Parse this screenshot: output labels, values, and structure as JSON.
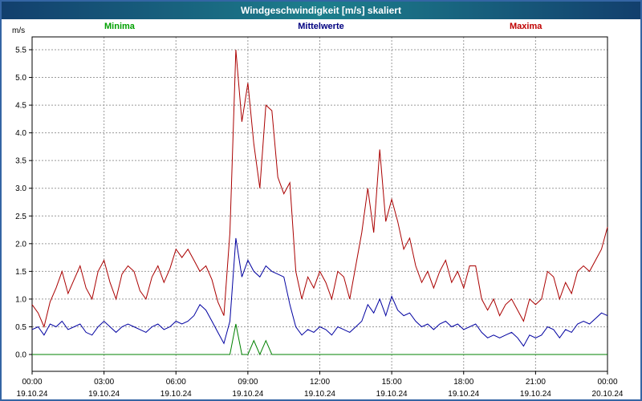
{
  "window": {
    "title": "Windgeschwindigkeit [m/s] skaliert"
  },
  "legend": {
    "minima": "Minima",
    "mittelwerte": "Mittelwerte",
    "maxima": "Maxima"
  },
  "y_axis_unit": "m/s",
  "colors": {
    "border": "#3465a4",
    "titlebar_gradient": [
      "#123f6d",
      "#1d7f8c",
      "#123f6d"
    ],
    "grid": "#9a9a9a",
    "minima": "#008000",
    "mittelwerte": "#0000a0",
    "maxima": "#aa0000"
  },
  "chart_data": {
    "type": "line",
    "title": "Windgeschwindigkeit [m/s] skaliert",
    "xlabel": "",
    "ylabel": "m/s",
    "ylim": [
      0,
      5.75
    ],
    "grid": "dashed",
    "legend_position": "top",
    "x_hours_start": 0,
    "x_interval_hours": 0.25,
    "x_tick_labels": [
      "00:00",
      "03:00",
      "06:00",
      "09:00",
      "12:00",
      "15:00",
      "18:00",
      "21:00",
      "00:00"
    ],
    "x_tick_dates": [
      "19.10.24",
      "19.10.24",
      "19.10.24",
      "19.10.24",
      "19.10.24",
      "19.10.24",
      "19.10.24",
      "19.10.24",
      "20.10.24"
    ],
    "y_tick_labels": [
      "0.0",
      "0.5",
      "1.0",
      "1.5",
      "2.0",
      "2.5",
      "3.0",
      "3.5",
      "4.0",
      "4.5",
      "5.0",
      "5.5"
    ],
    "series": [
      {
        "name": "Minima",
        "color": "#008000",
        "values": [
          0,
          0,
          0,
          0,
          0,
          0,
          0,
          0,
          0,
          0,
          0,
          0,
          0,
          0,
          0,
          0,
          0,
          0,
          0,
          0,
          0,
          0,
          0,
          0,
          0,
          0,
          0,
          0,
          0,
          0,
          0,
          0,
          0,
          0,
          0.55,
          0,
          0,
          0.25,
          0,
          0.25,
          0,
          0,
          0,
          0,
          0,
          0,
          0,
          0,
          0,
          0,
          0,
          0,
          0,
          0,
          0,
          0,
          0,
          0,
          0,
          0,
          0,
          0,
          0,
          0,
          0,
          0,
          0,
          0,
          0,
          0,
          0,
          0,
          0,
          0,
          0,
          0,
          0,
          0,
          0,
          0,
          0,
          0,
          0,
          0,
          0,
          0,
          0,
          0,
          0,
          0,
          0,
          0,
          0,
          0,
          0,
          0,
          0
        ]
      },
      {
        "name": "Mittelwerte",
        "color": "#0000a0",
        "values": [
          0.45,
          0.5,
          0.35,
          0.55,
          0.5,
          0.6,
          0.45,
          0.5,
          0.55,
          0.4,
          0.35,
          0.5,
          0.6,
          0.5,
          0.4,
          0.5,
          0.55,
          0.5,
          0.45,
          0.4,
          0.5,
          0.55,
          0.45,
          0.5,
          0.6,
          0.55,
          0.6,
          0.7,
          0.9,
          0.8,
          0.6,
          0.4,
          0.2,
          0.6,
          2.1,
          1.4,
          1.7,
          1.5,
          1.4,
          1.6,
          1.5,
          1.45,
          1.4,
          0.9,
          0.5,
          0.35,
          0.45,
          0.4,
          0.5,
          0.45,
          0.35,
          0.5,
          0.45,
          0.4,
          0.5,
          0.6,
          0.9,
          0.75,
          1.0,
          0.7,
          1.05,
          0.8,
          0.7,
          0.75,
          0.6,
          0.5,
          0.55,
          0.45,
          0.55,
          0.6,
          0.5,
          0.55,
          0.45,
          0.5,
          0.55,
          0.4,
          0.3,
          0.35,
          0.3,
          0.35,
          0.4,
          0.3,
          0.15,
          0.35,
          0.3,
          0.35,
          0.5,
          0.45,
          0.3,
          0.45,
          0.4,
          0.55,
          0.6,
          0.55,
          0.65,
          0.75,
          0.7
        ]
      },
      {
        "name": "Maxima",
        "color": "#aa0000",
        "values": [
          0.9,
          0.75,
          0.5,
          0.95,
          1.2,
          1.5,
          1.1,
          1.35,
          1.6,
          1.2,
          1.0,
          1.5,
          1.7,
          1.3,
          1.0,
          1.45,
          1.6,
          1.5,
          1.15,
          1.0,
          1.4,
          1.6,
          1.3,
          1.55,
          1.9,
          1.75,
          1.9,
          1.7,
          1.5,
          1.6,
          1.35,
          0.95,
          0.7,
          2.2,
          5.5,
          4.2,
          4.9,
          3.8,
          3.0,
          4.5,
          4.4,
          3.2,
          2.9,
          3.1,
          1.5,
          1.0,
          1.4,
          1.2,
          1.5,
          1.3,
          1.0,
          1.5,
          1.4,
          1.0,
          1.6,
          2.2,
          3.0,
          2.2,
          3.7,
          2.4,
          2.8,
          2.4,
          1.9,
          2.1,
          1.6,
          1.3,
          1.5,
          1.2,
          1.5,
          1.7,
          1.3,
          1.5,
          1.2,
          1.6,
          1.6,
          1.0,
          0.8,
          1.0,
          0.7,
          0.9,
          1.0,
          0.8,
          0.6,
          1.0,
          0.9,
          1.0,
          1.5,
          1.4,
          1.0,
          1.3,
          1.1,
          1.5,
          1.6,
          1.5,
          1.7,
          1.9,
          2.3
        ]
      }
    ]
  }
}
